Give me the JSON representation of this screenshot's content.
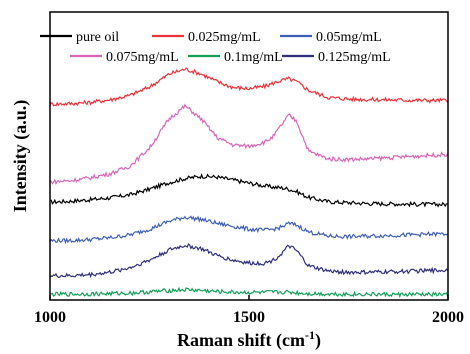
{
  "chart_data": {
    "type": "line",
    "title": "",
    "xlabel": "Raman shift (cm",
    "xlabel_sup": "-1",
    "xlabel_close": ")",
    "ylabel": "Intensity (a.u.)",
    "xlim": [
      1000,
      2000
    ],
    "ylim": [
      0,
      100
    ],
    "x_ticks": [
      1000,
      1500,
      2000
    ],
    "x_tick_labels": [
      "1000",
      "1500",
      "2000"
    ],
    "grid": false,
    "legend": "top",
    "x": [
      1000,
      1050,
      1100,
      1150,
      1200,
      1250,
      1300,
      1340,
      1380,
      1420,
      1460,
      1500,
      1540,
      1560,
      1580,
      1600,
      1620,
      1650,
      1700,
      1750,
      1800,
      1850,
      1900,
      1950,
      2000
    ],
    "series": [
      {
        "name": "pure oil",
        "color": "#000000",
        "values": [
          34,
          34.3,
          34.8,
          35.5,
          36.5,
          38.5,
          40.8,
          42.2,
          43,
          42.7,
          41.7,
          40.6,
          39.6,
          39.2,
          39,
          38.5,
          37.6,
          35.6,
          34.1,
          33.8,
          33.5,
          33.4,
          33.3,
          33.2,
          33.2
        ]
      },
      {
        "name": "0.025mg/mL",
        "color": "#e8333c",
        "values": [
          68,
          68.2,
          68.6,
          69.5,
          71,
          74,
          78.5,
          80.2,
          78.5,
          75.8,
          73.8,
          73.4,
          74.2,
          75.2,
          76.2,
          76.8,
          75.8,
          72.8,
          70.3,
          69.8,
          69.6,
          69.5,
          69.4,
          69.3,
          69.3
        ]
      },
      {
        "name": "0.05mg/mL",
        "color": "#3f5fb5",
        "values": [
          20.6,
          20.6,
          21,
          21.6,
          22.6,
          24.6,
          27.4,
          28.8,
          28,
          26.6,
          25.6,
          24.6,
          24.2,
          24.6,
          25.2,
          26.6,
          26,
          23.6,
          22.2,
          22,
          22.2,
          22.4,
          22.6,
          22.8,
          23
        ]
      },
      {
        "name": "0.075mg/mL",
        "color": "#d966b6",
        "values": [
          41,
          41.4,
          42.4,
          43.8,
          46.4,
          52.8,
          63,
          67.4,
          62.8,
          56.4,
          53.8,
          53.4,
          54.8,
          56.6,
          60.4,
          64.2,
          62,
          51.6,
          49,
          48.8,
          49,
          49.4,
          49.8,
          50.2,
          50.6
        ]
      },
      {
        "name": "0.1mg/mL",
        "color": "#15a05a",
        "values": [
          2,
          2,
          2.1,
          2.2,
          2.4,
          2.8,
          3.3,
          3.6,
          3.3,
          2.9,
          2.7,
          2.6,
          2.6,
          2.7,
          2.7,
          2.7,
          2.5,
          2.2,
          2.1,
          2,
          2,
          1.9,
          1.9,
          1.9,
          1.9
        ]
      },
      {
        "name": "0.125mg/mL",
        "color": "#2f2f7a",
        "values": [
          8.4,
          8.4,
          8.8,
          9.6,
          11.2,
          13.8,
          17.4,
          19,
          17.8,
          15.4,
          13.8,
          12.8,
          12.8,
          13.8,
          15.8,
          18.8,
          17,
          11.8,
          10,
          9.6,
          9.6,
          9.8,
          10,
          10.2,
          10.4
        ]
      }
    ]
  }
}
